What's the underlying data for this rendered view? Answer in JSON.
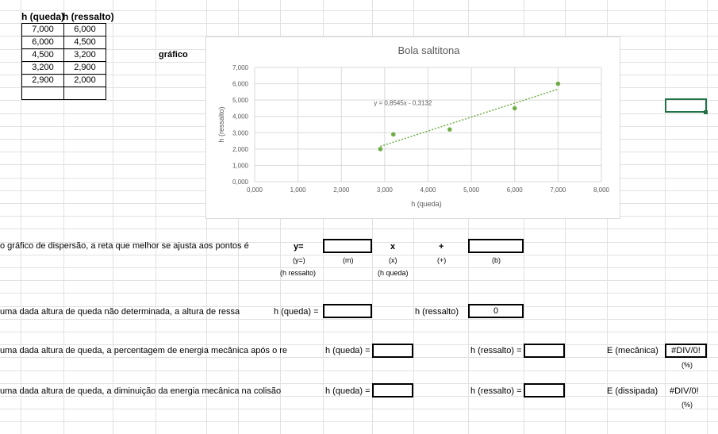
{
  "table": {
    "headers": [
      "h (queda)",
      "h (ressalto)"
    ],
    "rows": [
      [
        "7,000",
        "6,000"
      ],
      [
        "6,000",
        "4,500"
      ],
      [
        "4,500",
        "3,200"
      ],
      [
        "3,200",
        "2,900"
      ],
      [
        "2,900",
        "2,000"
      ],
      [
        "",
        ""
      ]
    ]
  },
  "label_grafico": "gráfico",
  "chart_data": {
    "type": "scatter",
    "title": "Bola saltitona",
    "xlabel": "h (queda)",
    "ylabel": "h (ressalto)",
    "xlim": [
      0,
      8
    ],
    "ylim": [
      0,
      7
    ],
    "xticks": [
      "0,000",
      "1,000",
      "2,000",
      "3,000",
      "4,000",
      "5,000",
      "6,000",
      "7,000",
      "8,000"
    ],
    "yticks": [
      "0,000",
      "1,000",
      "2,000",
      "3,000",
      "4,000",
      "5,000",
      "6,000",
      "7,000"
    ],
    "points": [
      {
        "x": 7.0,
        "y": 6.0
      },
      {
        "x": 6.0,
        "y": 4.5
      },
      {
        "x": 4.5,
        "y": 3.2
      },
      {
        "x": 3.2,
        "y": 2.9
      },
      {
        "x": 2.9,
        "y": 2.0
      }
    ],
    "trendline": {
      "slope": 0.8545,
      "intercept": -0.3132,
      "x_range": [
        2.9,
        7.0
      ],
      "label": "y = 0,8545x - 0,3132"
    },
    "grid": true,
    "point_color": "#70ad47",
    "trend_color": "#70ad47"
  },
  "q1": {
    "text": "o gráfico de dispersão, a reta que melhor se ajusta aos pontos é",
    "y_eq": "y=",
    "x_sym": "x",
    "plus": "+",
    "sub_y": "(y=)",
    "sub_m": "(m)",
    "sub_x": "(x)",
    "sub_plus": "(+)",
    "sub_b": "(b)",
    "sub_hres": "(h ressalto)",
    "sub_hqueda": "(h queda)"
  },
  "q2": {
    "text": "uma dada altura de queda não determinada, a altura de ressa",
    "hq_label": "h (queda) =",
    "hr_label": "h (ressalto)",
    "hr_value": "0"
  },
  "q3": {
    "text": "uma dada altura de queda, a percentagem de energia mecânica após o re",
    "hq_label": "h (queda) =",
    "hr_label": "h (ressalto) =",
    "e_label": "E (mecânica)",
    "e_value": "#DIV/0!",
    "unit": "(%)"
  },
  "q4": {
    "text": "uma dada altura de queda, a diminuição da energia mecânica na colisão",
    "hq_label": "h (queda) =",
    "hr_label": "h (ressalto) =",
    "e_label": "E (dissipada)",
    "e_value": "#DIV/0!",
    "unit": "(%)"
  }
}
